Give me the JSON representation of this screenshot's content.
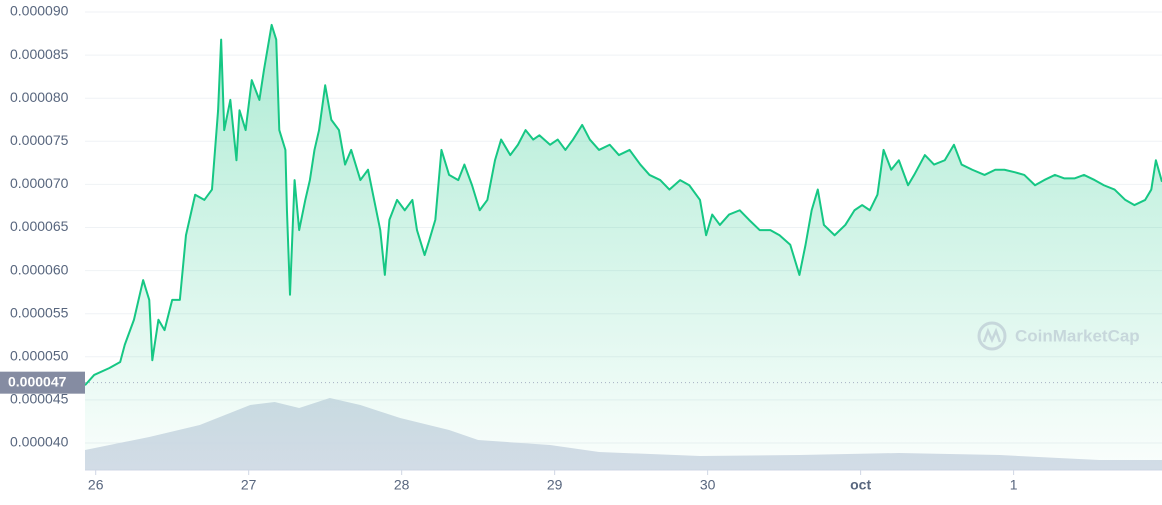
{
  "chart_data": {
    "type": "line",
    "watermark": "CoinMarketCap",
    "reference": {
      "value": 4.7e-05,
      "label": "0.000047"
    },
    "x": [
      -0.07,
      -0.01,
      0.09,
      0.16,
      0.19,
      0.25,
      0.31,
      0.35,
      0.37,
      0.41,
      0.45,
      0.5,
      0.55,
      0.59,
      0.65,
      0.71,
      0.76,
      0.8,
      0.82,
      0.84,
      0.88,
      0.92,
      0.94,
      0.98,
      1.02,
      1.07,
      1.1,
      1.15,
      1.18,
      1.2,
      1.24,
      1.25,
      1.27,
      1.3,
      1.33,
      1.37,
      1.4,
      1.43,
      1.46,
      1.5,
      1.54,
      1.59,
      1.63,
      1.67,
      1.73,
      1.78,
      1.82,
      1.86,
      1.89,
      1.92,
      1.97,
      2.02,
      2.07,
      2.1,
      2.15,
      2.18,
      2.22,
      2.26,
      2.31,
      2.37,
      2.41,
      2.46,
      2.51,
      2.56,
      2.61,
      2.65,
      2.71,
      2.76,
      2.81,
      2.86,
      2.9,
      2.97,
      3.02,
      3.07,
      3.12,
      3.18,
      3.23,
      3.29,
      3.36,
      3.42,
      3.49,
      3.56,
      3.62,
      3.69,
      3.75,
      3.82,
      3.88,
      3.95,
      3.99,
      4.03,
      4.08,
      4.14,
      4.21,
      4.27,
      4.34,
      4.41,
      4.47,
      4.54,
      4.6,
      4.64,
      4.68,
      4.72,
      4.76,
      4.83,
      4.9,
      4.96,
      5.01,
      5.06,
      5.11,
      5.15,
      5.2,
      5.25,
      5.31,
      5.35,
      5.42,
      5.48,
      5.55,
      5.61,
      5.66,
      5.73,
      5.81,
      5.88,
      5.94,
      6.01,
      6.07,
      6.14,
      6.2,
      6.27,
      6.33,
      6.4,
      6.46,
      6.53,
      6.59,
      6.66,
      6.73,
      6.79,
      6.86,
      6.9,
      6.93,
      6.97
    ],
    "series": [
      {
        "color": "#16c784",
        "values": [
          4.67e-05,
          4.79e-05,
          4.87e-05,
          4.94e-05,
          5.14e-05,
          5.43e-05,
          5.89e-05,
          5.66e-05,
          4.96e-05,
          5.43e-05,
          5.31e-05,
          5.66e-05,
          5.66e-05,
          6.41e-05,
          6.88e-05,
          6.82e-05,
          6.94e-05,
          7.86e-05,
          8.68e-05,
          7.63e-05,
          7.98e-05,
          7.28e-05,
          7.86e-05,
          7.63e-05,
          8.21e-05,
          7.98e-05,
          8.33e-05,
          8.85e-05,
          8.68e-05,
          7.63e-05,
          7.4e-05,
          6.7e-05,
          5.72e-05,
          7.05e-05,
          6.47e-05,
          6.82e-05,
          7.05e-05,
          7.4e-05,
          7.63e-05,
          8.15e-05,
          7.75e-05,
          7.63e-05,
          7.23e-05,
          7.4e-05,
          7.05e-05,
          7.17e-05,
          6.82e-05,
          6.47e-05,
          5.95e-05,
          6.59e-05,
          6.82e-05,
          6.7e-05,
          6.82e-05,
          6.47e-05,
          6.18e-05,
          6.35e-05,
          6.59e-05,
          7.4e-05,
          7.11e-05,
          7.05e-05,
          7.23e-05,
          6.99e-05,
          6.7e-05,
          6.82e-05,
          7.28e-05,
          7.52e-05,
          7.34e-05,
          7.46e-05,
          7.63e-05,
          7.52e-05,
          7.57e-05,
          7.46e-05,
          7.52e-05,
          7.4e-05,
          7.52e-05,
          7.69e-05,
          7.52e-05,
          7.4e-05,
          7.46e-05,
          7.34e-05,
          7.4e-05,
          7.23e-05,
          7.11e-05,
          7.05e-05,
          6.94e-05,
          7.05e-05,
          6.99e-05,
          6.82e-05,
          6.41e-05,
          6.65e-05,
          6.53e-05,
          6.65e-05,
          6.7e-05,
          6.59e-05,
          6.47e-05,
          6.47e-05,
          6.41e-05,
          6.3e-05,
          5.95e-05,
          6.3e-05,
          6.7e-05,
          6.94e-05,
          6.53e-05,
          6.41e-05,
          6.53e-05,
          6.7e-05,
          6.76e-05,
          6.7e-05,
          6.88e-05,
          7.4e-05,
          7.17e-05,
          7.28e-05,
          6.99e-05,
          7.11e-05,
          7.34e-05,
          7.23e-05,
          7.28e-05,
          7.46e-05,
          7.23e-05,
          7.17e-05,
          7.11e-05,
          7.17e-05,
          7.17e-05,
          7.14e-05,
          7.11e-05,
          6.99e-05,
          7.05e-05,
          7.11e-05,
          7.07e-05,
          7.07e-05,
          7.11e-05,
          7.05e-05,
          6.99e-05,
          6.94e-05,
          6.82e-05,
          6.76e-05,
          6.82e-05,
          6.94e-05,
          7.28e-05,
          7.03e-05
        ]
      }
    ],
    "volume": {
      "color": "#cfd6e4",
      "ylim": [
        0,
        100
      ],
      "x": [
        -0.07,
        0.35,
        0.68,
        1.01,
        1.17,
        1.33,
        1.53,
        1.73,
        1.99,
        2.31,
        2.5,
        2.97,
        3.29,
        3.95,
        4.6,
        5.25,
        5.91,
        6.56,
        6.97
      ],
      "values": [
        20,
        33,
        45,
        65,
        68,
        62,
        72,
        65,
        52,
        40,
        30,
        25,
        18,
        14,
        15,
        17,
        15,
        10,
        10
      ]
    },
    "xlim": [
      -0.07,
      6.97
    ],
    "xticks": [
      {
        "value": 0,
        "label": "26"
      },
      {
        "value": 1,
        "label": "27"
      },
      {
        "value": 2,
        "label": "28"
      },
      {
        "value": 3,
        "label": "29"
      },
      {
        "value": 4,
        "label": "30"
      },
      {
        "value": 5,
        "label": "oct"
      },
      {
        "value": 6,
        "label": "1"
      }
    ],
    "ylim": [
      3.687e-05,
      9.139e-05
    ],
    "yticks": [
      {
        "value": 4e-05,
        "label": "0.000040"
      },
      {
        "value": 4.5e-05,
        "label": "0.000045"
      },
      {
        "value": 5e-05,
        "label": "0.000050"
      },
      {
        "value": 5.5e-05,
        "label": "0.000055"
      },
      {
        "value": 6e-05,
        "label": "0.000060"
      },
      {
        "value": 6.5e-05,
        "label": "0.000065"
      },
      {
        "value": 7e-05,
        "label": "0.000070"
      },
      {
        "value": 7.5e-05,
        "label": "0.000075"
      },
      {
        "value": 8e-05,
        "label": "0.000080"
      },
      {
        "value": 8.5e-05,
        "label": "0.000085"
      },
      {
        "value": 9e-05,
        "label": "0.000090"
      }
    ],
    "grid": true
  }
}
